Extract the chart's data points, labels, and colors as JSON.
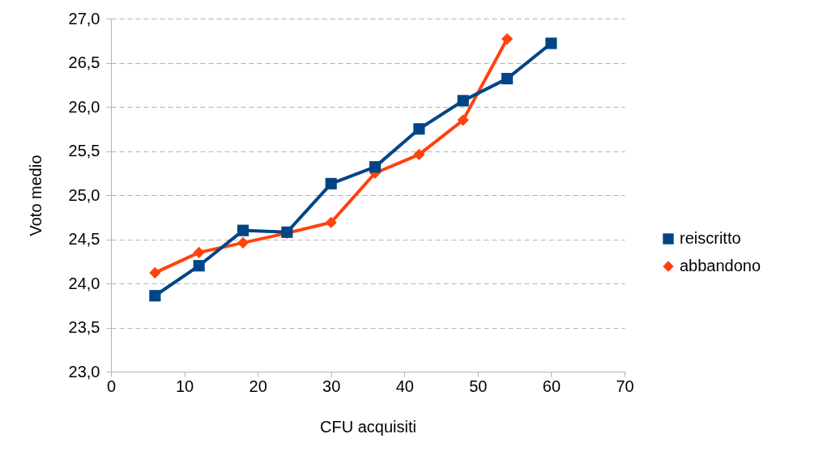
{
  "chart_data": {
    "type": "line",
    "xlabel": "CFU acquisiti",
    "ylabel": "Voto medio",
    "x": [
      6,
      12,
      18,
      24,
      30,
      36,
      42,
      48,
      54,
      60
    ],
    "series": [
      {
        "name": "reiscritto",
        "color": "#004586",
        "marker": "square",
        "values": [
          23.86,
          24.2,
          24.6,
          24.58,
          25.13,
          25.32,
          25.75,
          26.07,
          26.32,
          26.72
        ]
      },
      {
        "name": "abbandono",
        "color": "#ff420e",
        "marker": "diamond",
        "values": [
          24.12,
          24.35,
          24.46,
          24.57,
          24.69,
          25.25,
          25.46,
          25.85,
          26.77,
          null
        ]
      }
    ],
    "xlim": [
      0,
      70
    ],
    "xticks": [
      0,
      10,
      20,
      30,
      40,
      50,
      60,
      70
    ],
    "ylim": [
      23,
      27
    ],
    "yticks": [
      {
        "value": 23,
        "label": "23,0"
      },
      {
        "value": 23.5,
        "label": "23,5"
      },
      {
        "value": 24,
        "label": "24,0"
      },
      {
        "value": 24.5,
        "label": "24,5"
      },
      {
        "value": 25,
        "label": "25,0"
      },
      {
        "value": 25.5,
        "label": "25,5"
      },
      {
        "value": 26,
        "label": "26,0"
      },
      {
        "value": 26.5,
        "label": "26,5"
      },
      {
        "value": 27,
        "label": "27,0"
      }
    ],
    "grid": "y",
    "legend": "right"
  }
}
